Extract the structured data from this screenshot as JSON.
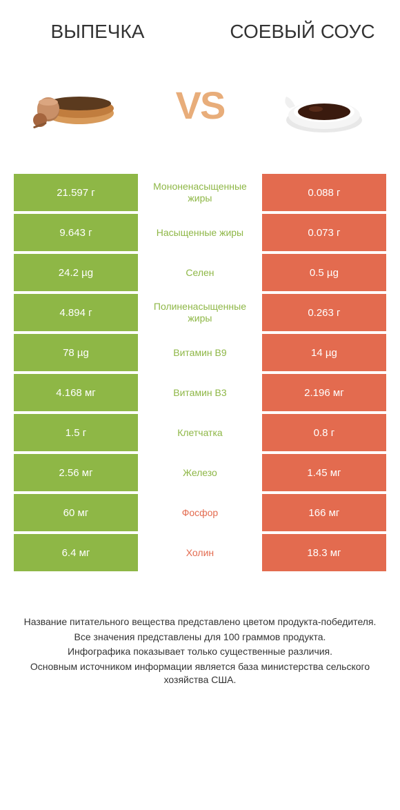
{
  "header": {
    "left_title": "ВЫПЕЧКА",
    "right_title": "СОЕВЫЙ СОУС",
    "vs": "VS"
  },
  "colors": {
    "green": "#8eb746",
    "orange": "#e36b4f",
    "vs_color": "#e8ad7a"
  },
  "rows": [
    {
      "left": "21.597 г",
      "mid": "Мононенасыщенные жиры",
      "right": "0.088 г",
      "winner": "left"
    },
    {
      "left": "9.643 г",
      "mid": "Насыщенные жиры",
      "right": "0.073 г",
      "winner": "left"
    },
    {
      "left": "24.2 µg",
      "mid": "Селен",
      "right": "0.5 µg",
      "winner": "left"
    },
    {
      "left": "4.894 г",
      "mid": "Полиненасыщенные жиры",
      "right": "0.263 г",
      "winner": "left"
    },
    {
      "left": "78 µg",
      "mid": "Витамин B9",
      "right": "14 µg",
      "winner": "left"
    },
    {
      "left": "4.168 мг",
      "mid": "Витамин B3",
      "right": "2.196 мг",
      "winner": "left"
    },
    {
      "left": "1.5 г",
      "mid": "Клетчатка",
      "right": "0.8 г",
      "winner": "left"
    },
    {
      "left": "2.56 мг",
      "mid": "Железо",
      "right": "1.45 мг",
      "winner": "left"
    },
    {
      "left": "60 мг",
      "mid": "Фосфор",
      "right": "166 мг",
      "winner": "right"
    },
    {
      "left": "6.4 мг",
      "mid": "Холин",
      "right": "18.3 мг",
      "winner": "right"
    }
  ],
  "footer": {
    "line1": "Название питательного вещества представлено цветом продукта-победителя.",
    "line2": "Все значения представлены для 100 граммов продукта.",
    "line3": "Инфографика показывает только существенные различия.",
    "line4": "Основным источником информации является база министерства сельского хозяйства США."
  }
}
